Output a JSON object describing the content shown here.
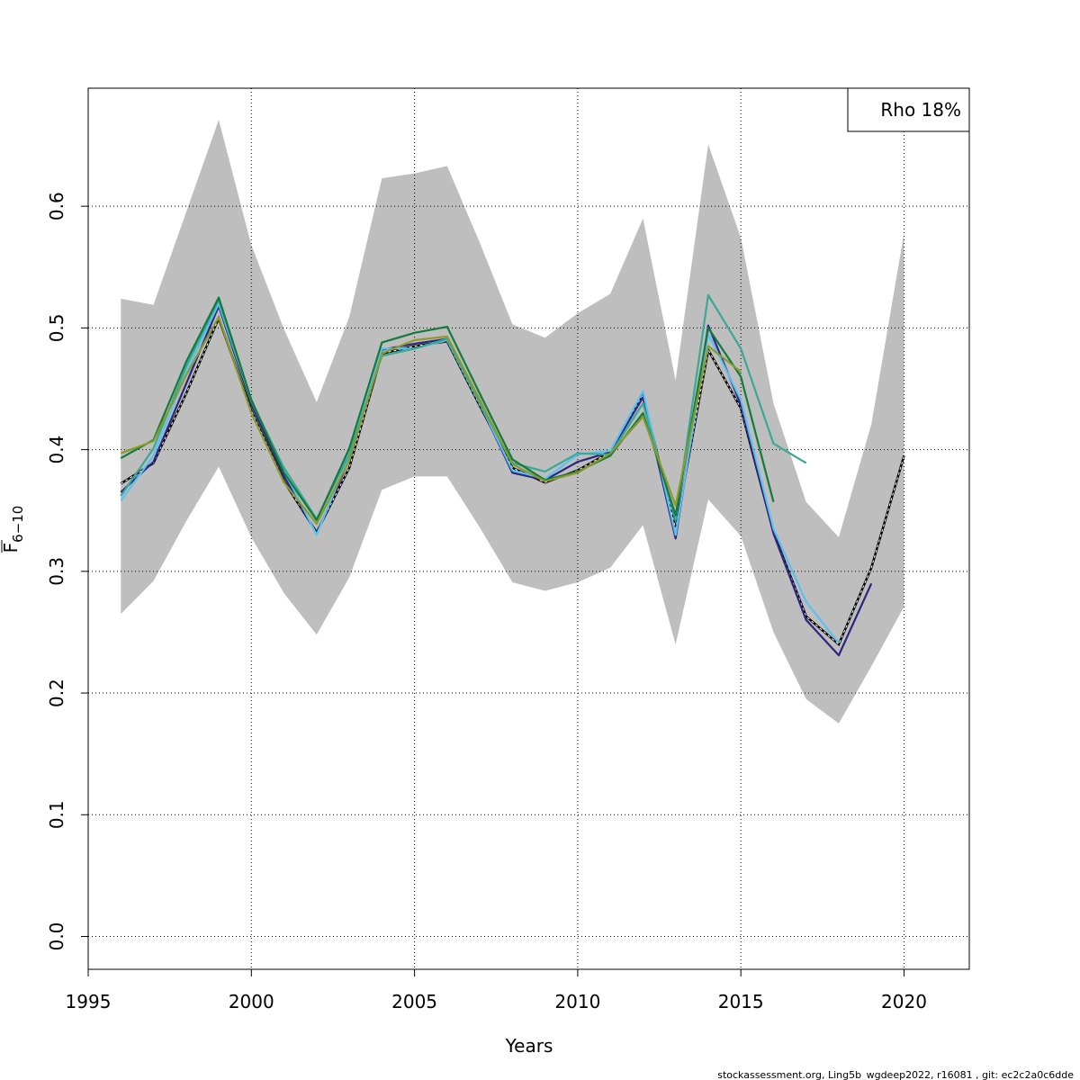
{
  "chart_data": {
    "type": "line",
    "xlabel": "Years",
    "ylabel": {
      "main": "F",
      "sub": "6−10"
    },
    "xlim": [
      1995,
      2022
    ],
    "ylim": [
      -0.027,
      0.697
    ],
    "x_ticks": [
      1995,
      2000,
      2005,
      2010,
      2015,
      2020
    ],
    "y_ticks": [
      0.0,
      0.1,
      0.2,
      0.3,
      0.4,
      0.5,
      0.6
    ],
    "x_tick_labels": [
      "1995",
      "2000",
      "2005",
      "2010",
      "2015",
      "2020"
    ],
    "y_tick_labels": [
      "0.0",
      "0.1",
      "0.2",
      "0.3",
      "0.4",
      "0.5",
      "0.6"
    ],
    "grid": true,
    "legend": {
      "text": "Rho 18%",
      "position": "top-right"
    },
    "confidence_band": {
      "color": "#bebebe",
      "x": [
        1996,
        1997,
        1998,
        1999,
        2000,
        2001,
        2002,
        2003,
        2004,
        2005,
        2006,
        2007,
        2008,
        2009,
        2010,
        2011,
        2012,
        2013,
        2014,
        2015,
        2016,
        2017,
        2018,
        2019,
        2020
      ],
      "upper": [
        0.524,
        0.519,
        0.595,
        0.671,
        0.568,
        0.499,
        0.439,
        0.509,
        0.623,
        0.627,
        0.633,
        0.57,
        0.503,
        0.492,
        0.512,
        0.528,
        0.59,
        0.457,
        0.651,
        0.574,
        0.438,
        0.357,
        0.328,
        0.421,
        0.578
      ],
      "lower": [
        0.265,
        0.292,
        0.341,
        0.386,
        0.328,
        0.282,
        0.248,
        0.295,
        0.367,
        0.378,
        0.378,
        0.336,
        0.291,
        0.284,
        0.291,
        0.303,
        0.338,
        0.24,
        0.359,
        0.329,
        0.25,
        0.195,
        0.175,
        0.222,
        0.271
      ]
    },
    "series": [
      {
        "color": "#000000",
        "dashed": true,
        "x": [
          1996,
          1997,
          1998,
          1999,
          2000,
          2001,
          2002,
          2003,
          2004,
          2005,
          2006,
          2007,
          2008,
          2009,
          2010,
          2011,
          2012,
          2013,
          2014,
          2015,
          2016,
          2017,
          2018,
          2019,
          2020
        ],
        "values": [
          0.372,
          0.389,
          0.446,
          0.508,
          0.432,
          0.374,
          0.332,
          0.385,
          0.479,
          0.485,
          0.489,
          0.436,
          0.385,
          0.373,
          0.383,
          0.398,
          0.445,
          0.335,
          0.482,
          0.434,
          0.332,
          0.263,
          0.24,
          0.303,
          0.395
        ]
      },
      {
        "color": "#2d2582",
        "x": [
          1996,
          1997,
          1998,
          1999,
          2000,
          2001,
          2002,
          2003,
          2004,
          2005,
          2006,
          2007,
          2008,
          2009,
          2010,
          2011,
          2012,
          2013,
          2014,
          2015,
          2016,
          2017,
          2018,
          2019
        ],
        "values": [
          0.365,
          0.39,
          0.454,
          0.518,
          0.437,
          0.378,
          0.331,
          0.392,
          0.482,
          0.487,
          0.491,
          0.438,
          0.381,
          0.375,
          0.39,
          0.398,
          0.443,
          0.327,
          0.502,
          0.437,
          0.331,
          0.26,
          0.231,
          0.29
        ]
      },
      {
        "color": "#5cc1f0",
        "x": [
          1996,
          1997,
          1998,
          1999,
          2000,
          2001,
          2002,
          2003,
          2004,
          2005,
          2006,
          2007,
          2008,
          2009,
          2010,
          2011,
          2012,
          2013,
          2014,
          2015,
          2016,
          2017,
          2018
        ],
        "values": [
          0.358,
          0.395,
          0.463,
          0.52,
          0.44,
          0.383,
          0.33,
          0.395,
          0.483,
          0.483,
          0.49,
          0.438,
          0.383,
          0.376,
          0.396,
          0.399,
          0.448,
          0.33,
          0.495,
          0.441,
          0.335,
          0.275,
          0.241
        ]
      },
      {
        "color": "#3aa895",
        "x": [
          1996,
          1997,
          1998,
          1999,
          2000,
          2001,
          2002,
          2003,
          2004,
          2005,
          2006,
          2007,
          2008,
          2009,
          2010,
          2011,
          2012,
          2013,
          2014,
          2015,
          2016,
          2017
        ],
        "values": [
          0.362,
          0.401,
          0.468,
          0.523,
          0.44,
          0.385,
          0.343,
          0.396,
          0.477,
          0.483,
          0.491,
          0.438,
          0.389,
          0.382,
          0.397,
          0.396,
          0.438,
          0.342,
          0.527,
          0.483,
          0.405,
          0.389
        ]
      },
      {
        "color": "#127a3c",
        "x": [
          1996,
          1997,
          1998,
          1999,
          2000,
          2001,
          2002,
          2003,
          2004,
          2005,
          2006,
          2007,
          2008,
          2009,
          2010,
          2011,
          2012,
          2013,
          2014,
          2015,
          2016
        ],
        "values": [
          0.393,
          0.408,
          0.472,
          0.525,
          0.441,
          0.381,
          0.342,
          0.401,
          0.488,
          0.496,
          0.501,
          0.446,
          0.392,
          0.375,
          0.382,
          0.395,
          0.43,
          0.346,
          0.5,
          0.46,
          0.357
        ]
      },
      {
        "color": "#8a9a2b",
        "x": [
          1996,
          1997,
          1998,
          1999,
          2000,
          2001,
          2002,
          2003,
          2004,
          2005,
          2006,
          2007,
          2008,
          2009,
          2010,
          2011,
          2012,
          2013,
          2014,
          2015
        ],
        "values": [
          0.397,
          0.407,
          0.461,
          0.509,
          0.43,
          0.373,
          0.339,
          0.391,
          0.479,
          0.49,
          0.493,
          0.441,
          0.388,
          0.374,
          0.381,
          0.397,
          0.427,
          0.354,
          0.485,
          0.464
        ]
      }
    ]
  },
  "footer": "stockassessment.org, Ling5b_wgdeep2022, r16081 , git: ec2c2a0c6dde"
}
